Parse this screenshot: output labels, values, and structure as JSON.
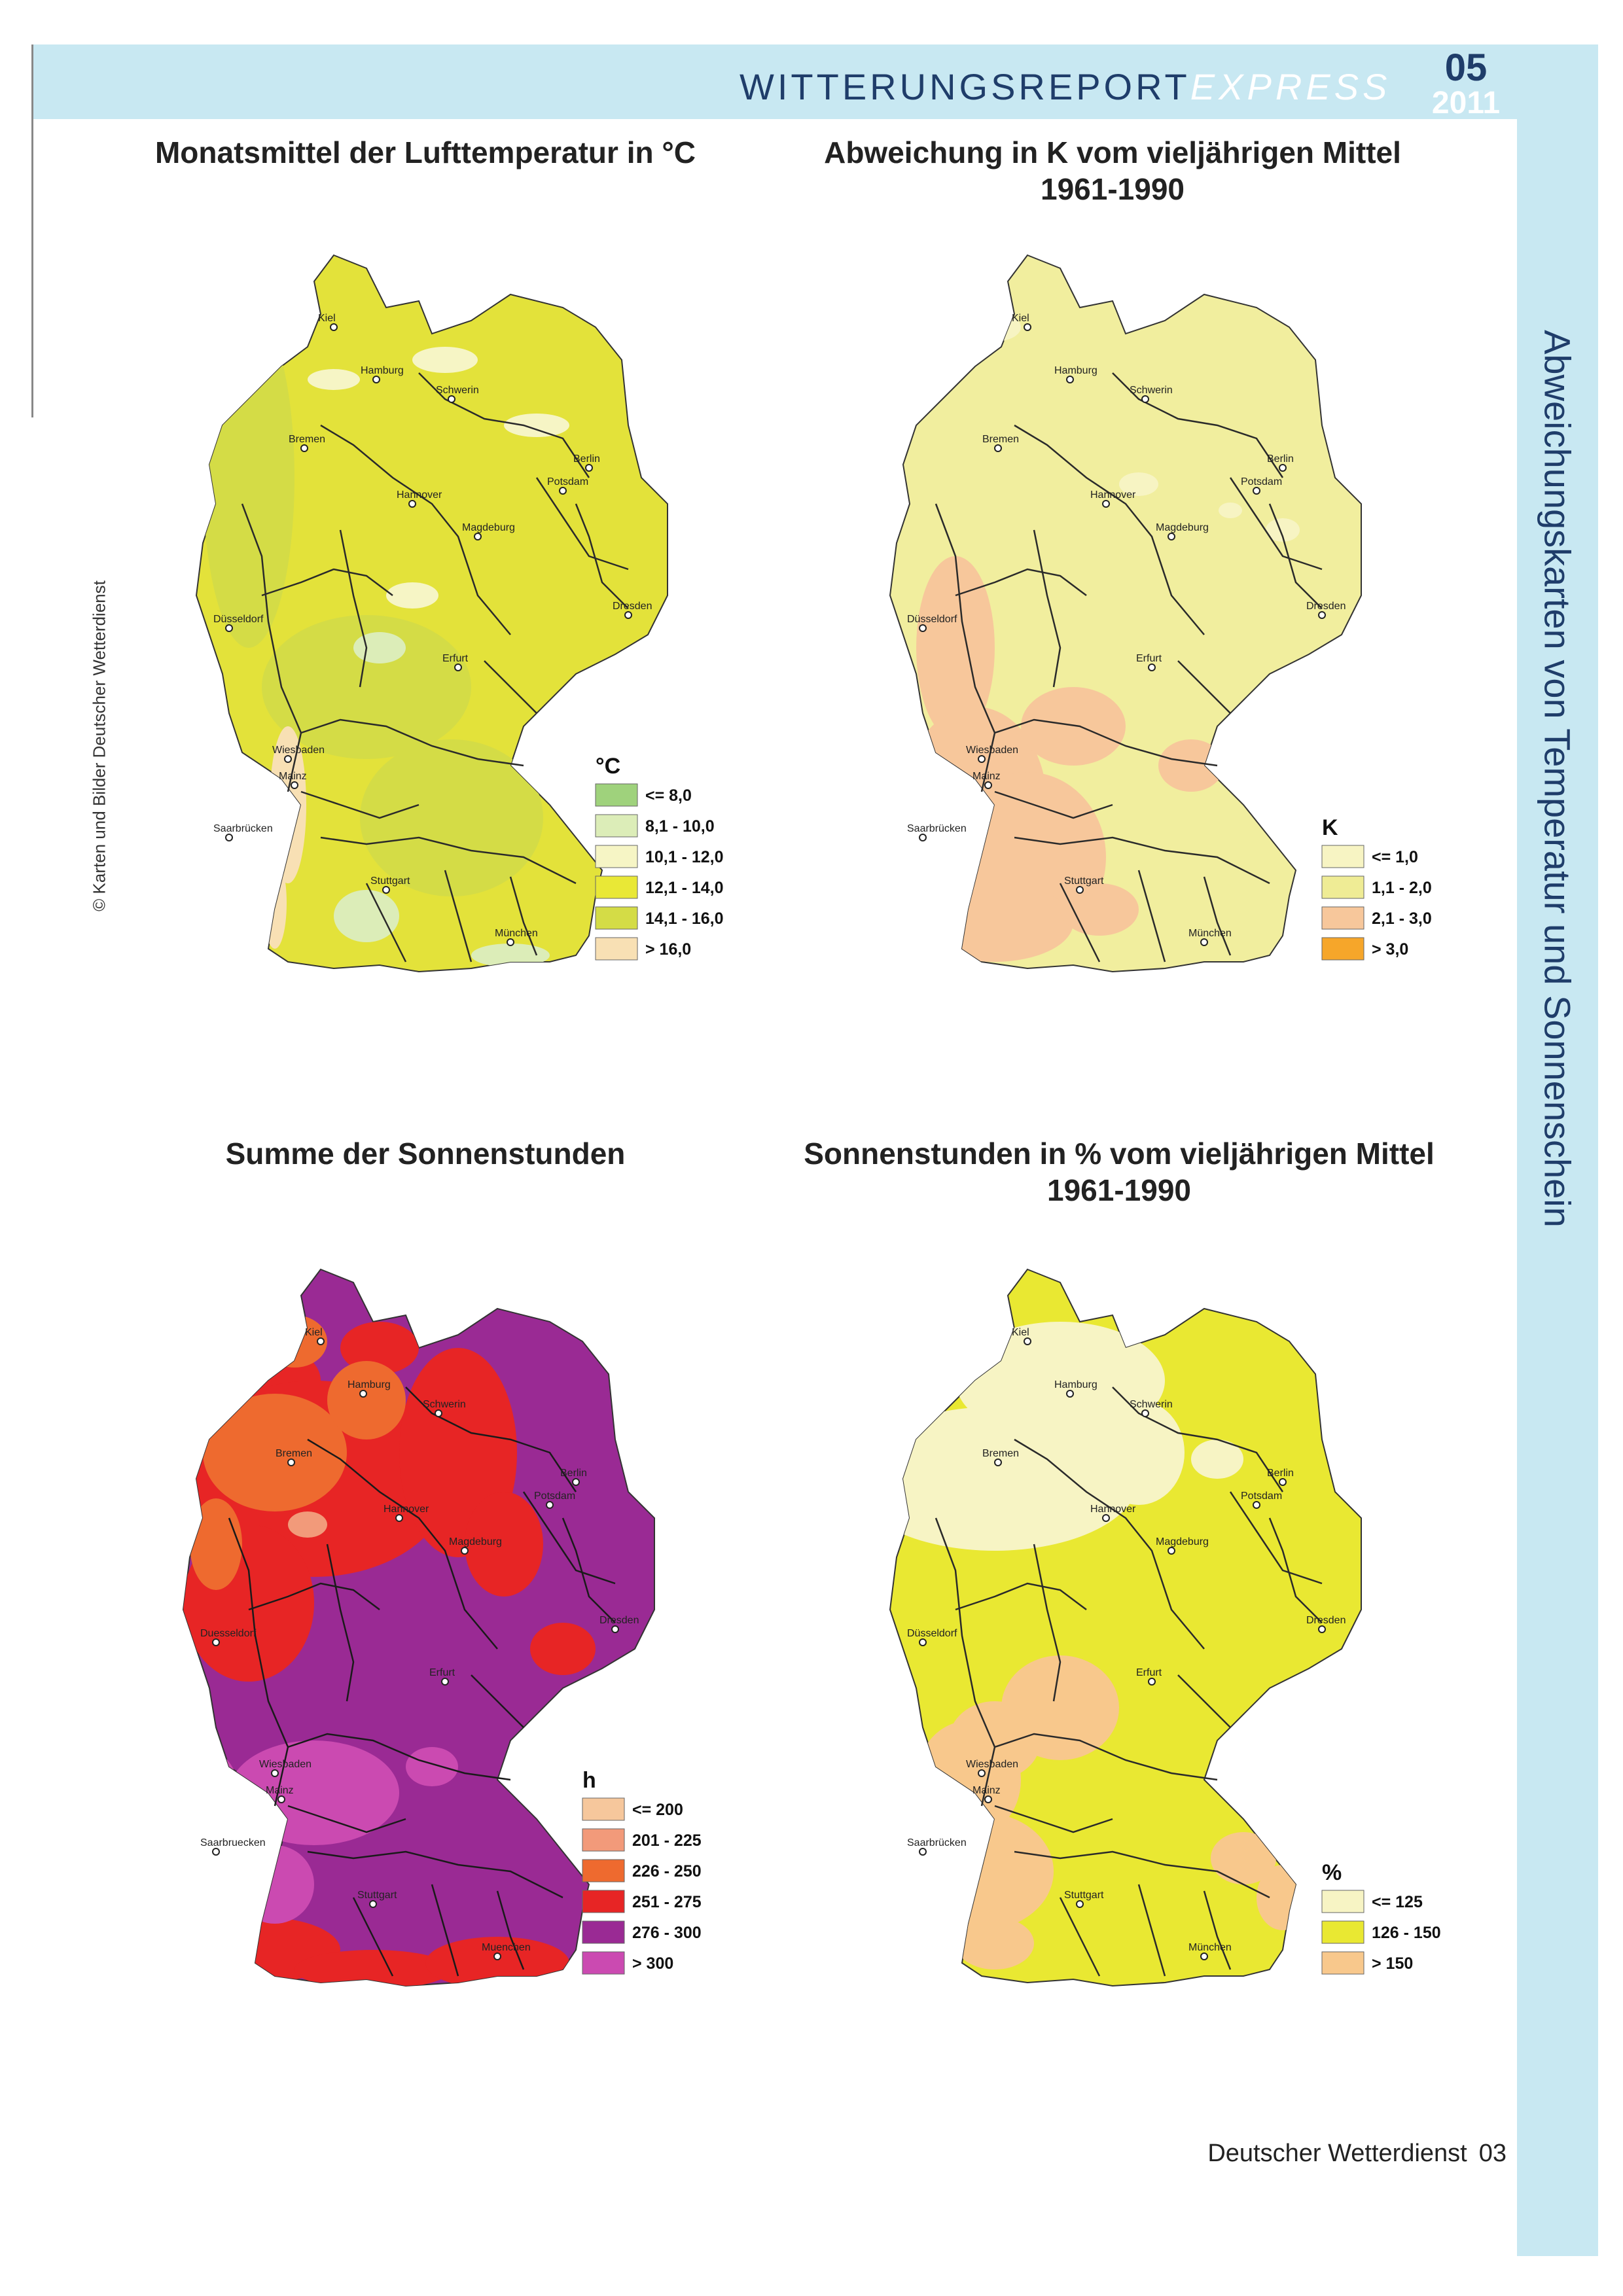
{
  "header": {
    "title_main": "WITTERUNGSREPORT",
    "title_light": "EXPRESS",
    "issue_number": "05",
    "issue_year": "2011"
  },
  "sidebar": {
    "title": "Abweichungskarten von Temperatur und Sonnenschein"
  },
  "copyright": "© Karten und Bilder Deutscher Wetterdienst",
  "footer": {
    "publisher": "Deutscher Wetterdienst",
    "page": "03"
  },
  "maps": [
    {
      "id": "temp",
      "title": [
        "Monatsmittel der Lufttemperatur in °C"
      ],
      "base_color": "#e3e23a",
      "river_color": "#2a2a2a",
      "legend_unit": "°C",
      "legend": [
        {
          "label": "<= 8,0",
          "color": "#9fd27c"
        },
        {
          "label": "8,1 - 10,0",
          "color": "#dcedb8"
        },
        {
          "label": "10,1 - 12,0",
          "color": "#f6f5c5"
        },
        {
          "label": "12,1 - 14,0",
          "color": "#e9e836"
        },
        {
          "label": "14,1 - 16,0",
          "color": "#d4dc46"
        },
        {
          "label": "> 16,0",
          "color": "#f8e0b4"
        }
      ],
      "cities": [
        "Kiel",
        "Hamburg",
        "Schwerin",
        "Bremen",
        "Berlin",
        "Potsdam",
        "Hannover",
        "Magdeburg",
        "Düsseldorf",
        "Dresden",
        "Erfurt",
        "Wiesbaden",
        "Mainz",
        "Saarbrücken",
        "Stuttgart",
        "München"
      ]
    },
    {
      "id": "temp-dev",
      "title": [
        "Abweichung in K vom vieljährigen Mittel",
        "1961-1990"
      ],
      "base_color": "#f1ee9e",
      "river_color": "#2a2a2a",
      "legend_unit": "K",
      "legend": [
        {
          "label": "<= 1,0",
          "color": "#f7f4c3"
        },
        {
          "label": "1,1 - 2,0",
          "color": "#efec95"
        },
        {
          "label": "2,1 - 3,0",
          "color": "#f7c79b"
        },
        {
          "label": "> 3,0",
          "color": "#f6a62a"
        }
      ],
      "cities": [
        "Kiel",
        "Hamburg",
        "Schwerin",
        "Bremen",
        "Berlin",
        "Potsdam",
        "Hannover",
        "Magdeburg",
        "Düsseldorf",
        "Dresden",
        "Erfurt",
        "Wiesbaden",
        "Mainz",
        "Saarbrücken",
        "Stuttgart",
        "München"
      ]
    },
    {
      "id": "sun",
      "title": [
        "Summe der Sonnenstunden"
      ],
      "base_color": "#9a2a94",
      "river_color": "#1a1a1a",
      "legend_unit": "h",
      "legend": [
        {
          "label": "<= 200",
          "color": "#f6c79c"
        },
        {
          "label": "201 - 225",
          "color": "#f29a7a"
        },
        {
          "label": "226 - 250",
          "color": "#ee6a2f"
        },
        {
          "label": "251 - 275",
          "color": "#e72525"
        },
        {
          "label": "276 - 300",
          "color": "#9a2a94"
        },
        {
          "label": "> 300",
          "color": "#cb4ab1"
        }
      ],
      "cities": [
        "Kiel",
        "Hamburg",
        "Schwerin",
        "Bremen",
        "Berlin",
        "Potsdam",
        "Hannover",
        "Magdeburg",
        "Duesseldorf",
        "Dresden",
        "Erfurt",
        "Wiesbaden",
        "Mainz",
        "Saarbruecken",
        "Stuttgart",
        "Muenchen"
      ]
    },
    {
      "id": "sun-dev",
      "title": [
        "Sonnenstunden in % vom vieljährigen Mittel",
        "1961-1990"
      ],
      "base_color": "#e9e832",
      "river_color": "#2a2a2a",
      "legend_unit": "%",
      "legend": [
        {
          "label": "<= 125",
          "color": "#f7f4c4"
        },
        {
          "label": "126 - 150",
          "color": "#e9e832"
        },
        {
          "label": "> 150",
          "color": "#f8c88c"
        }
      ],
      "cities": [
        "Kiel",
        "Hamburg",
        "Schwerin",
        "Bremen",
        "Berlin",
        "Potsdam",
        "Hannover",
        "Magdeburg",
        "Düsseldorf",
        "Dresden",
        "Erfurt",
        "Wiesbaden",
        "Mainz",
        "Saarbrücken",
        "Stuttgart",
        "München"
      ]
    }
  ]
}
